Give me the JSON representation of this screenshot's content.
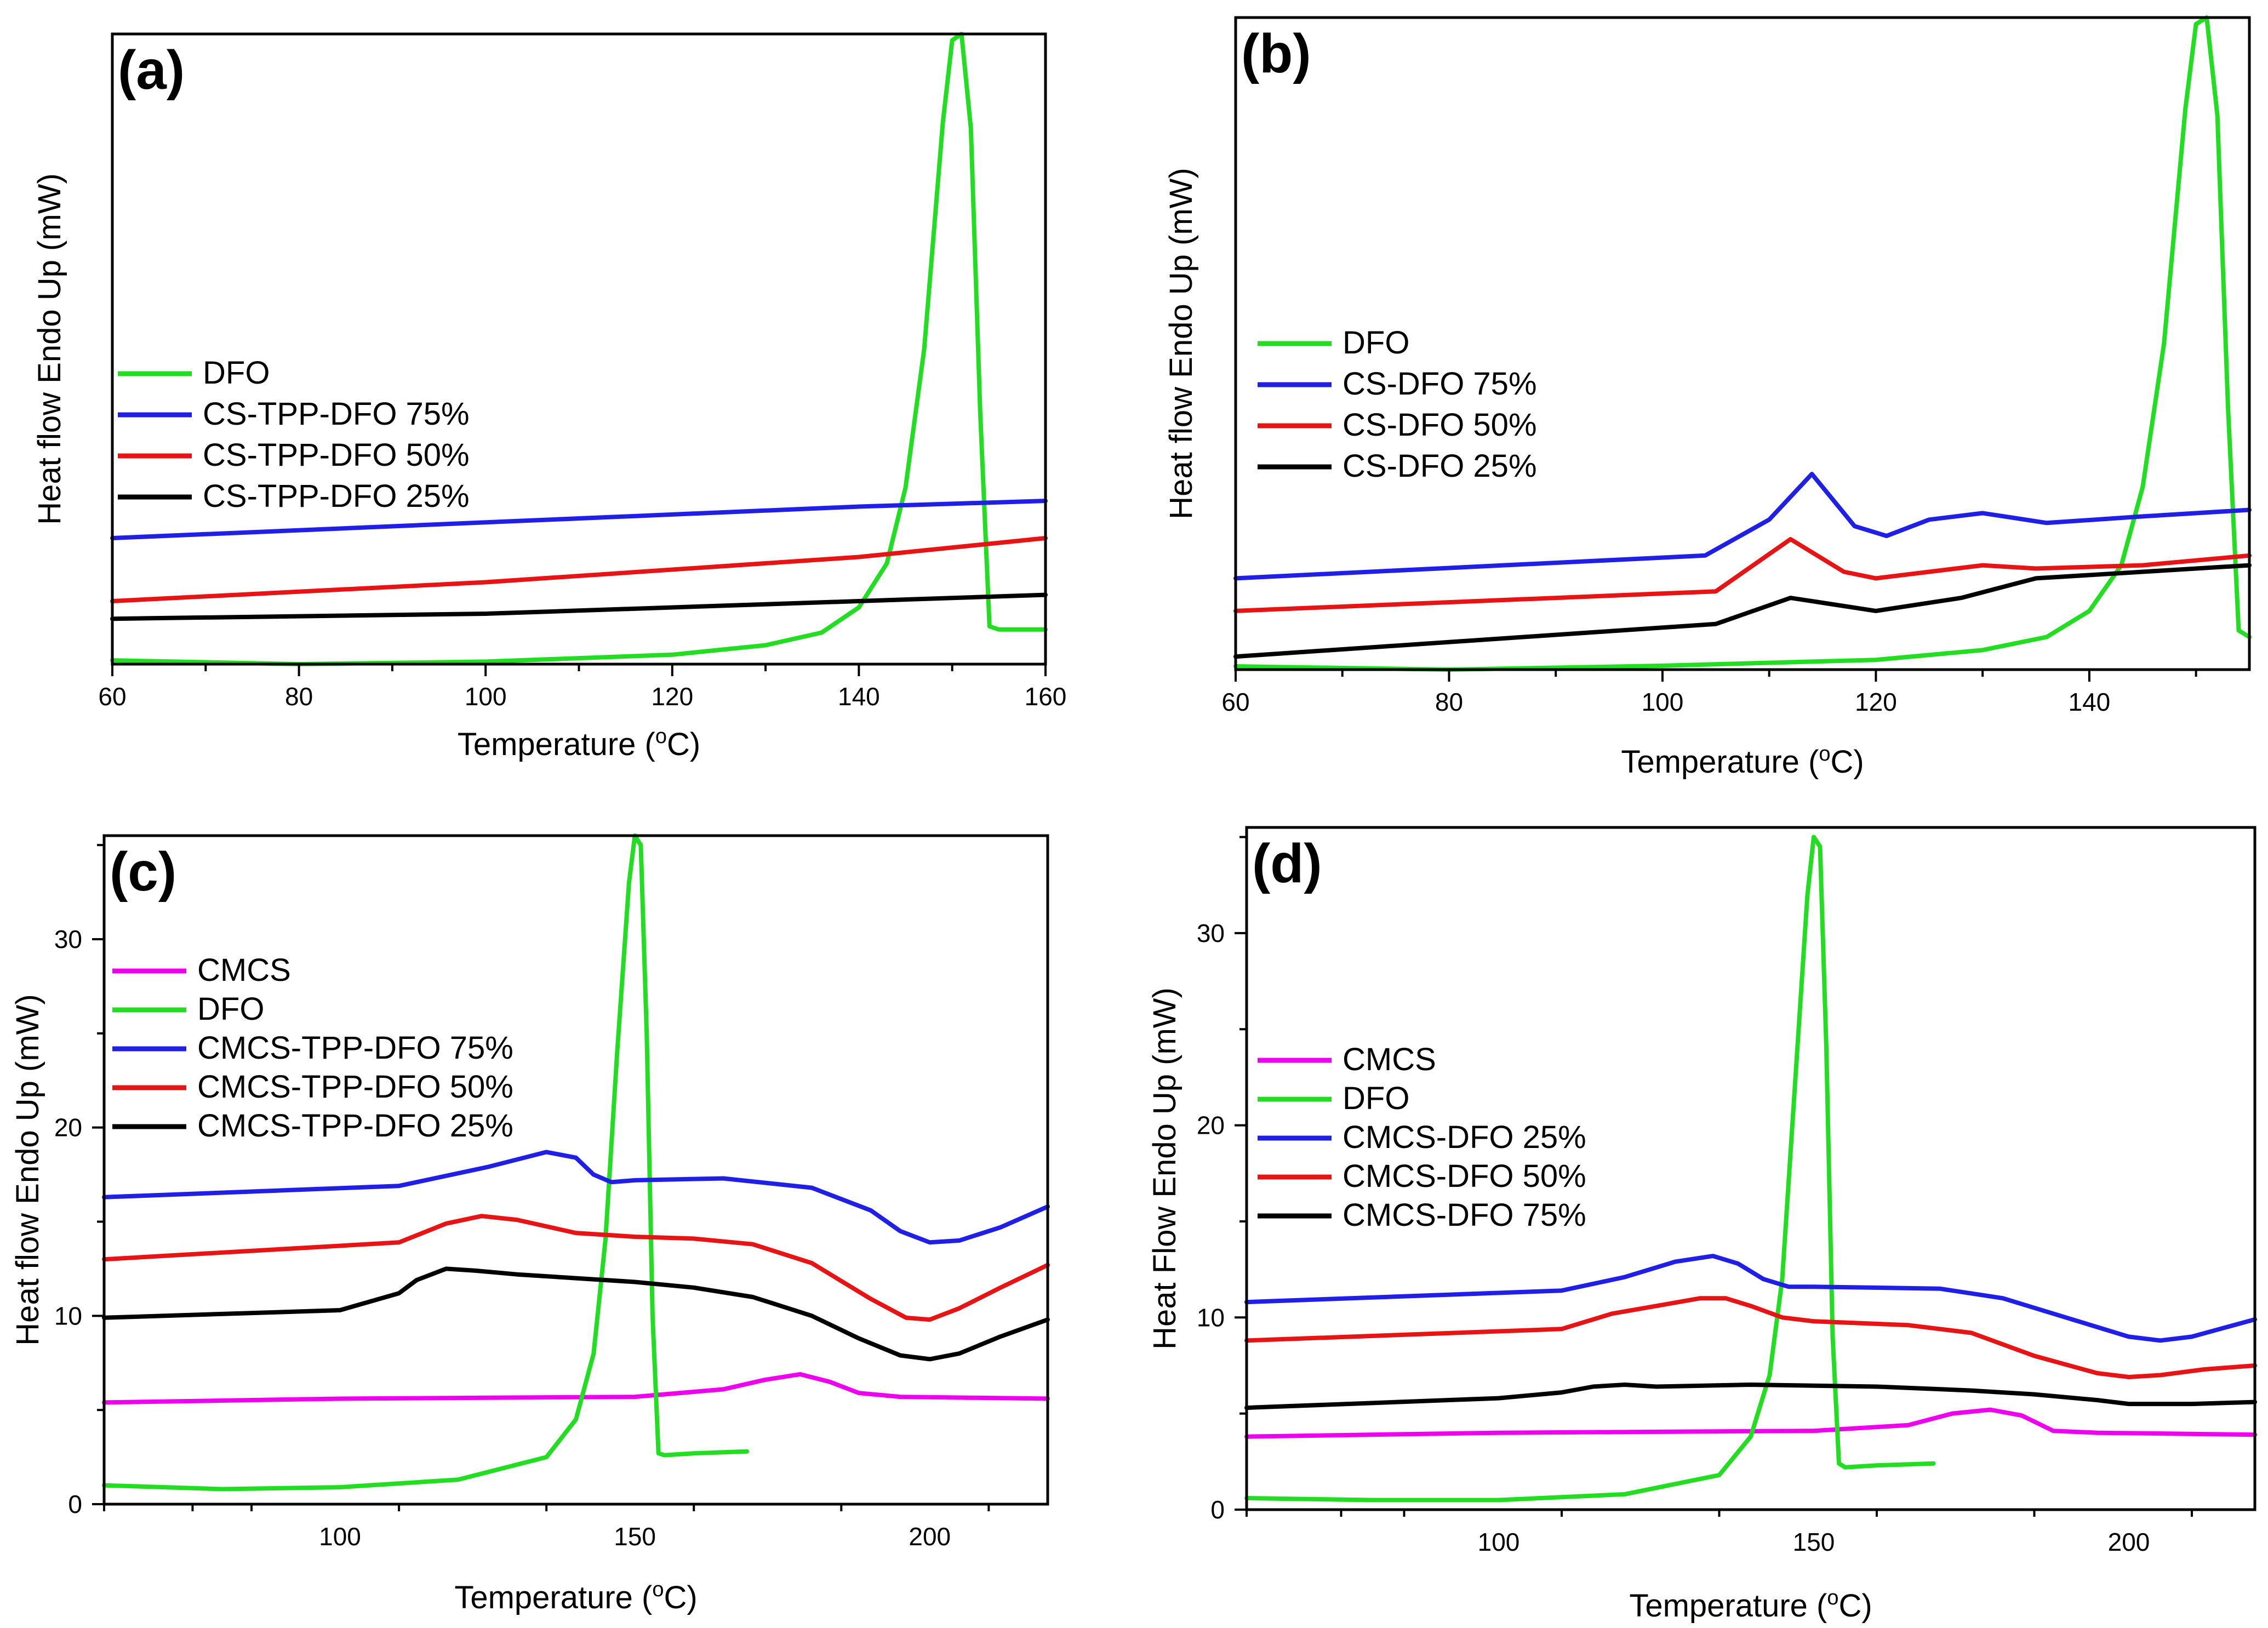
{
  "chart_data": [
    {
      "type": "line",
      "panel": "(a)",
      "xlabel": "Temperature (°C)",
      "ylabel": "Heat flow Endo Up (mW)",
      "xlim": [
        60,
        160
      ],
      "ylim": [
        0,
        100
      ],
      "xticks": [
        60,
        80,
        100,
        120,
        140,
        160
      ],
      "yticks": [],
      "legend_position": "middle-left",
      "series": [
        {
          "name": "DFO",
          "color": "#22dd22",
          "x": [
            60,
            80,
            100,
            120,
            130,
            136,
            140,
            143,
            145,
            147,
            149,
            150,
            151,
            152,
            153,
            154,
            155,
            160
          ],
          "y": [
            0.6,
            0,
            0.4,
            1.5,
            3,
            5,
            9,
            16,
            28,
            50,
            86,
            99,
            100,
            85,
            40,
            6,
            5.5,
            5.5
          ]
        },
        {
          "name": "CS-TPP-DFO 75%",
          "color": "#1f1fe6",
          "x": [
            60,
            100,
            140,
            160
          ],
          "y": [
            20,
            22.5,
            25,
            25.9
          ]
        },
        {
          "name": "CS-TPP-DFO 50%",
          "color": "#e61414",
          "x": [
            60,
            100,
            140,
            160
          ],
          "y": [
            10,
            13,
            17,
            20
          ]
        },
        {
          "name": "CS-TPP-DFO 25%",
          "color": "#000000",
          "x": [
            60,
            100,
            140,
            160
          ],
          "y": [
            7.2,
            8,
            10,
            11
          ]
        }
      ]
    },
    {
      "type": "line",
      "panel": "(b)",
      "xlabel": "Temperature (°C)",
      "ylabel": "Heat flow Endo Up (mW)",
      "xlim": [
        60,
        155
      ],
      "ylim": [
        0,
        100
      ],
      "xticks": [
        60,
        80,
        100,
        120,
        140
      ],
      "yticks": [],
      "legend_position": "middle-left",
      "series": [
        {
          "name": "DFO",
          "color": "#22dd22",
          "x": [
            60,
            80,
            100,
            120,
            130,
            136,
            140,
            143,
            145,
            147,
            149,
            150,
            151,
            152,
            153,
            154,
            155
          ],
          "y": [
            0.5,
            0,
            0.6,
            1.5,
            3,
            5,
            9,
            16,
            28,
            50,
            86,
            99,
            100,
            85,
            40,
            6,
            5
          ]
        },
        {
          "name": "CS-DFO 75%",
          "color": "#1f1fe6",
          "x": [
            60,
            104,
            110,
            114,
            118,
            121,
            125,
            130,
            136,
            145,
            155
          ],
          "y": [
            14,
            17.5,
            23,
            30,
            22,
            20.5,
            23,
            24,
            22.5,
            23.5,
            24.5
          ]
        },
        {
          "name": "CS-DFO 50%",
          "color": "#e61414",
          "x": [
            60,
            105,
            112,
            117,
            120,
            130,
            135,
            145,
            155
          ],
          "y": [
            9,
            12,
            20,
            15,
            14,
            16,
            15.5,
            16,
            17.5
          ]
        },
        {
          "name": "CS-DFO 25%",
          "color": "#000000",
          "x": [
            60,
            105,
            112,
            116,
            120,
            128,
            135,
            145,
            155
          ],
          "y": [
            2,
            7,
            11,
            10,
            9,
            11,
            14,
            15,
            16
          ]
        }
      ]
    },
    {
      "type": "line",
      "panel": "(c)",
      "xlabel": "Temperature (°C)",
      "ylabel": "Heat flow Endo Up (mW)",
      "xlim": [
        60,
        220
      ],
      "ylim": [
        0,
        35.5
      ],
      "xticks": [
        100,
        150,
        200
      ],
      "yticks": [
        0,
        10,
        20,
        30
      ],
      "legend_position": "middle-left",
      "series": [
        {
          "name": "CMCS",
          "color": "#ee00ee",
          "x": [
            60,
            100,
            150,
            165,
            172,
            178,
            183,
            188,
            195,
            220
          ],
          "y": [
            5.4,
            5.6,
            5.7,
            6.1,
            6.6,
            6.9,
            6.5,
            5.9,
            5.7,
            5.6
          ]
        },
        {
          "name": "DFO",
          "color": "#22dd22",
          "x": [
            60,
            80,
            100,
            120,
            135,
            140,
            143,
            145,
            147,
            149,
            150,
            151,
            152,
            153,
            154,
            155,
            160,
            169
          ],
          "y": [
            1,
            0.8,
            0.9,
            1.3,
            2.5,
            4.5,
            8,
            14,
            24,
            33,
            35.5,
            35,
            25,
            10,
            2.7,
            2.6,
            2.7,
            2.8
          ]
        },
        {
          "name": "CMCS-TPP-DFO 75%",
          "color": "#1f1fe6",
          "x": [
            60,
            110,
            125,
            135,
            140,
            143,
            146,
            150,
            165,
            180,
            190,
            195,
            200,
            205,
            212,
            220
          ],
          "y": [
            16.3,
            16.9,
            17.9,
            18.7,
            18.4,
            17.5,
            17.1,
            17.2,
            17.3,
            16.8,
            15.6,
            14.5,
            13.9,
            14,
            14.7,
            15.8
          ]
        },
        {
          "name": "CMCS-TPP-DFO 50%",
          "color": "#e61414",
          "x": [
            60,
            110,
            118,
            124,
            130,
            140,
            150,
            160,
            170,
            180,
            190,
            196,
            200,
            205,
            212,
            220
          ],
          "y": [
            13,
            13.9,
            14.9,
            15.3,
            15.1,
            14.4,
            14.2,
            14.1,
            13.8,
            12.8,
            10.9,
            9.9,
            9.8,
            10.4,
            11.5,
            12.7
          ]
        },
        {
          "name": "CMCS-TPP-DFO 25%",
          "color": "#000000",
          "x": [
            60,
            100,
            110,
            113,
            118,
            123,
            130,
            140,
            150,
            160,
            170,
            180,
            188,
            195,
            200,
            205,
            212,
            220
          ],
          "y": [
            9.9,
            10.3,
            11.2,
            11.9,
            12.5,
            12.4,
            12.2,
            12,
            11.8,
            11.5,
            11,
            10,
            8.8,
            7.9,
            7.7,
            8,
            8.9,
            9.8
          ]
        }
      ]
    },
    {
      "type": "line",
      "panel": "(d)",
      "xlabel": "Temperature (°C)",
      "ylabel": "Heat Flow Endo Up (mW)",
      "xlim": [
        60,
        220
      ],
      "ylim": [
        0,
        35.5
      ],
      "xticks": [
        100,
        150,
        200
      ],
      "yticks": [
        0,
        10,
        20,
        30
      ],
      "legend_position": "middle-left",
      "series": [
        {
          "name": "CMCS",
          "color": "#ee00ee",
          "x": [
            60,
            100,
            150,
            165,
            172,
            178,
            183,
            188,
            195,
            220
          ],
          "y": [
            3.8,
            4,
            4.1,
            4.4,
            5,
            5.2,
            4.9,
            4.1,
            4,
            3.9
          ]
        },
        {
          "name": "DFO",
          "color": "#22dd22",
          "x": [
            60,
            80,
            100,
            120,
            135,
            140,
            143,
            145,
            147,
            149,
            150,
            151,
            152,
            153,
            154,
            155,
            160,
            169
          ],
          "y": [
            0.6,
            0.5,
            0.5,
            0.8,
            1.8,
            3.8,
            7,
            12,
            22,
            32,
            35,
            34.5,
            24,
            9,
            2.4,
            2.2,
            2.3,
            2.4
          ]
        },
        {
          "name": "CMCS-DFO 25%",
          "color": "#1f1fe6",
          "x": [
            60,
            110,
            120,
            128,
            134,
            138,
            142,
            146,
            150,
            170,
            180,
            190,
            200,
            205,
            210,
            220
          ],
          "y": [
            10.8,
            11.4,
            12.1,
            12.9,
            13.2,
            12.8,
            12,
            11.6,
            11.6,
            11.5,
            11,
            10,
            9,
            8.8,
            9,
            9.9
          ]
        },
        {
          "name": "CMCS-DFO 50%",
          "color": "#e61414",
          "x": [
            60,
            110,
            118,
            125,
            132,
            136,
            140,
            145,
            150,
            165,
            175,
            185,
            195,
            200,
            205,
            212,
            220
          ],
          "y": [
            8.8,
            9.4,
            10.2,
            10.6,
            11,
            11,
            10.6,
            10,
            9.8,
            9.6,
            9.2,
            8,
            7.1,
            6.9,
            7,
            7.3,
            7.5
          ]
        },
        {
          "name": "CMCS-DFO 75%",
          "color": "#000000",
          "x": [
            60,
            100,
            110,
            115,
            120,
            125,
            140,
            160,
            175,
            185,
            195,
            200,
            210,
            220
          ],
          "y": [
            5.3,
            5.8,
            6.1,
            6.4,
            6.5,
            6.4,
            6.5,
            6.4,
            6.2,
            6,
            5.7,
            5.5,
            5.5,
            5.6
          ]
        }
      ]
    }
  ]
}
